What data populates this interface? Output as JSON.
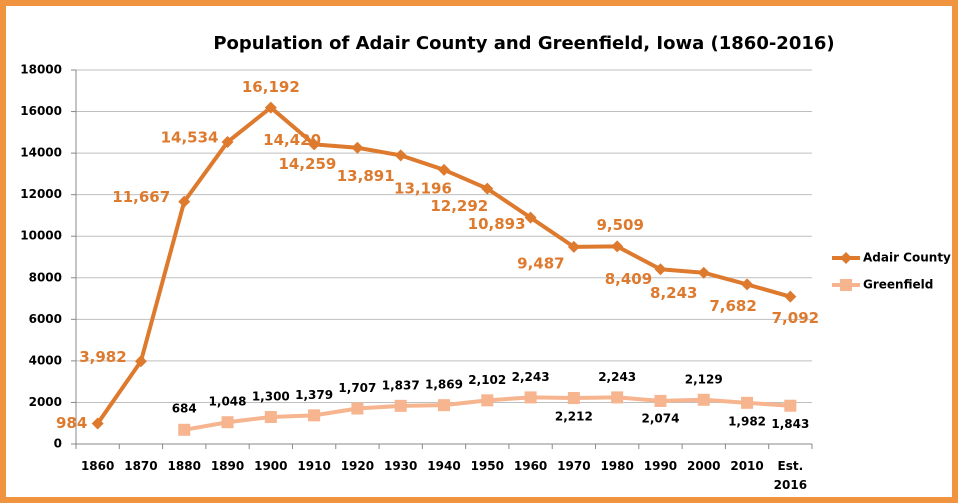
{
  "chart_data": {
    "type": "line",
    "title": "Population of Adair County and Greenfield, Iowa (1860-2016)",
    "categories": [
      "1860",
      "1870",
      "1880",
      "1890",
      "1900",
      "1910",
      "1920",
      "1930",
      "1940",
      "1950",
      "1960",
      "1970",
      "1980",
      "1990",
      "2000",
      "2010",
      "Est. 2016"
    ],
    "series": [
      {
        "name": "Adair County",
        "color": "#dd7a2e",
        "marker": "diamond",
        "values": [
          984,
          3982,
          11667,
          14534,
          16192,
          14420,
          14259,
          13891,
          13196,
          12292,
          10893,
          9487,
          9509,
          8409,
          8243,
          7682,
          7092
        ],
        "value_labels": [
          "984",
          "3,982",
          "11,667",
          "14,534",
          "16,192",
          "14,420",
          "14,259",
          "13,891",
          "13,196",
          "12,292",
          "10,893",
          "9,487",
          "9,509",
          "8,409",
          "8,243",
          "7,682",
          "7,092"
        ]
      },
      {
        "name": "Greenfield",
        "color": "#f6b48f",
        "marker": "square",
        "values": [
          null,
          null,
          684,
          1048,
          1300,
          1379,
          1707,
          1837,
          1869,
          2102,
          2243,
          2212,
          2243,
          2074,
          2129,
          1982,
          1843
        ],
        "value_labels": [
          null,
          null,
          "684",
          "1,048",
          "1,300",
          "1,379",
          "1,707",
          "1,837",
          "1,869",
          "2,102",
          "2,243",
          "2,212",
          "2,243",
          "2,074",
          "2,129",
          "1,982",
          "1,843"
        ]
      }
    ],
    "ylim": [
      0,
      18000
    ],
    "yticks": [
      0,
      2000,
      4000,
      6000,
      8000,
      10000,
      12000,
      14000,
      16000,
      18000
    ],
    "grid": true,
    "legend": "right"
  }
}
